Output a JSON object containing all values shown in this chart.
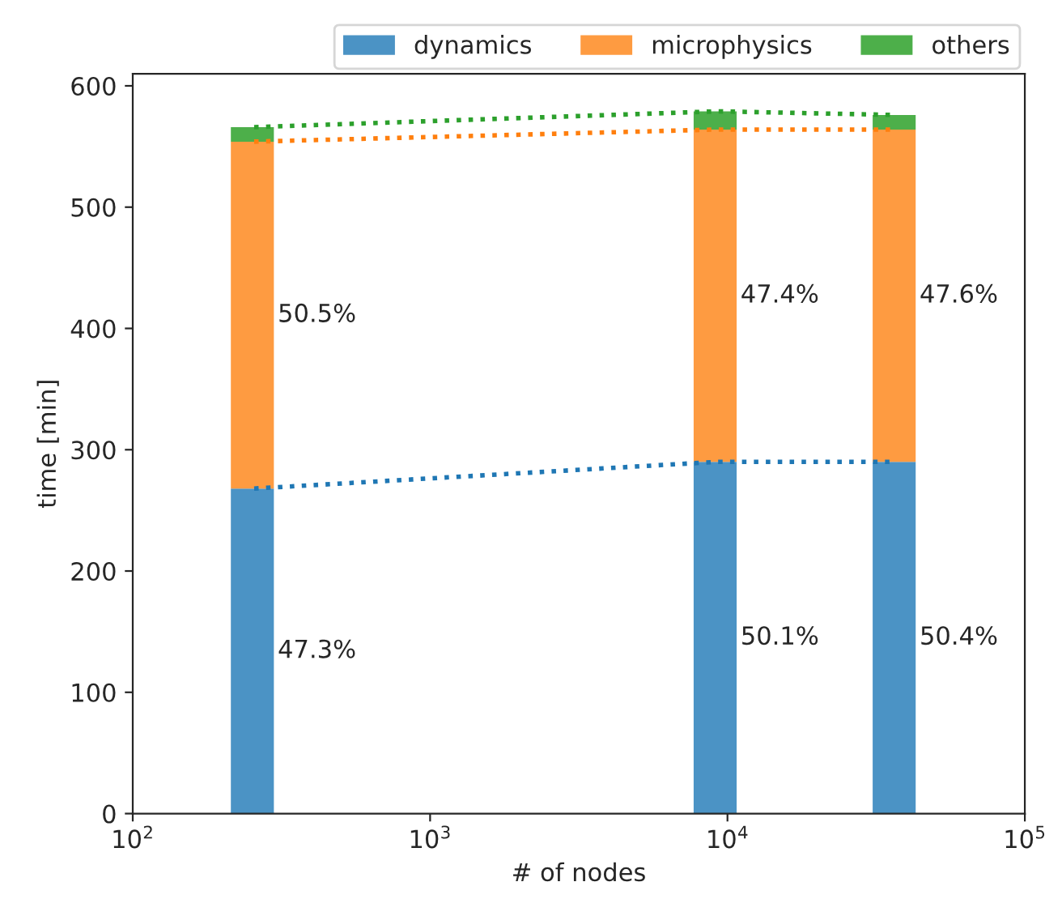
{
  "chart_data": {
    "type": "bar",
    "stacked": true,
    "xlabel": "# of nodes",
    "ylabel": "time [min]",
    "log": "x",
    "x": [
      256,
      9216,
      36864
    ],
    "series": [
      {
        "name": "dynamics",
        "type": "bar",
        "color": "#4b93c5",
        "values": [
          268,
          290,
          290
        ]
      },
      {
        "name": "microphysics",
        "type": "bar",
        "color": "#fe9b41",
        "values": [
          286,
          274,
          274
        ]
      },
      {
        "name": "others",
        "type": "bar",
        "color": "#4daf4a",
        "values": [
          12,
          15,
          12
        ]
      },
      {
        "type": "line",
        "color": "#1f77b4",
        "line_style": "dotted",
        "x": [
          256,
          9216,
          36864
        ],
        "values": [
          268,
          290,
          290
        ]
      },
      {
        "type": "line",
        "color": "#ff7f0e",
        "line_style": "dotted",
        "x": [
          256,
          9216,
          36864
        ],
        "values": [
          554,
          564,
          564
        ]
      },
      {
        "type": "line",
        "color": "#2ca02c",
        "line_style": "dotted",
        "x": [
          256,
          9216,
          36864
        ],
        "values": [
          566,
          579,
          576
        ]
      }
    ],
    "xlim": [
      100,
      100000
    ],
    "xticks": [
      {
        "value": 100,
        "label": "10$^{2}$"
      },
      {
        "value": 1000,
        "label": "10$^{3}$"
      },
      {
        "value": 10000,
        "label": "10$^{4}$"
      },
      {
        "value": 100000,
        "label": "10$^{5}$"
      }
    ],
    "ylim": [
      0,
      610
    ],
    "yticks": [
      0,
      100,
      200,
      300,
      400,
      500,
      600
    ],
    "annotations": [
      "47.3%",
      "50.1%",
      "50.4%",
      "50.5%",
      "47.4%",
      "47.6%"
    ],
    "grid": false,
    "legend": "top right"
  }
}
